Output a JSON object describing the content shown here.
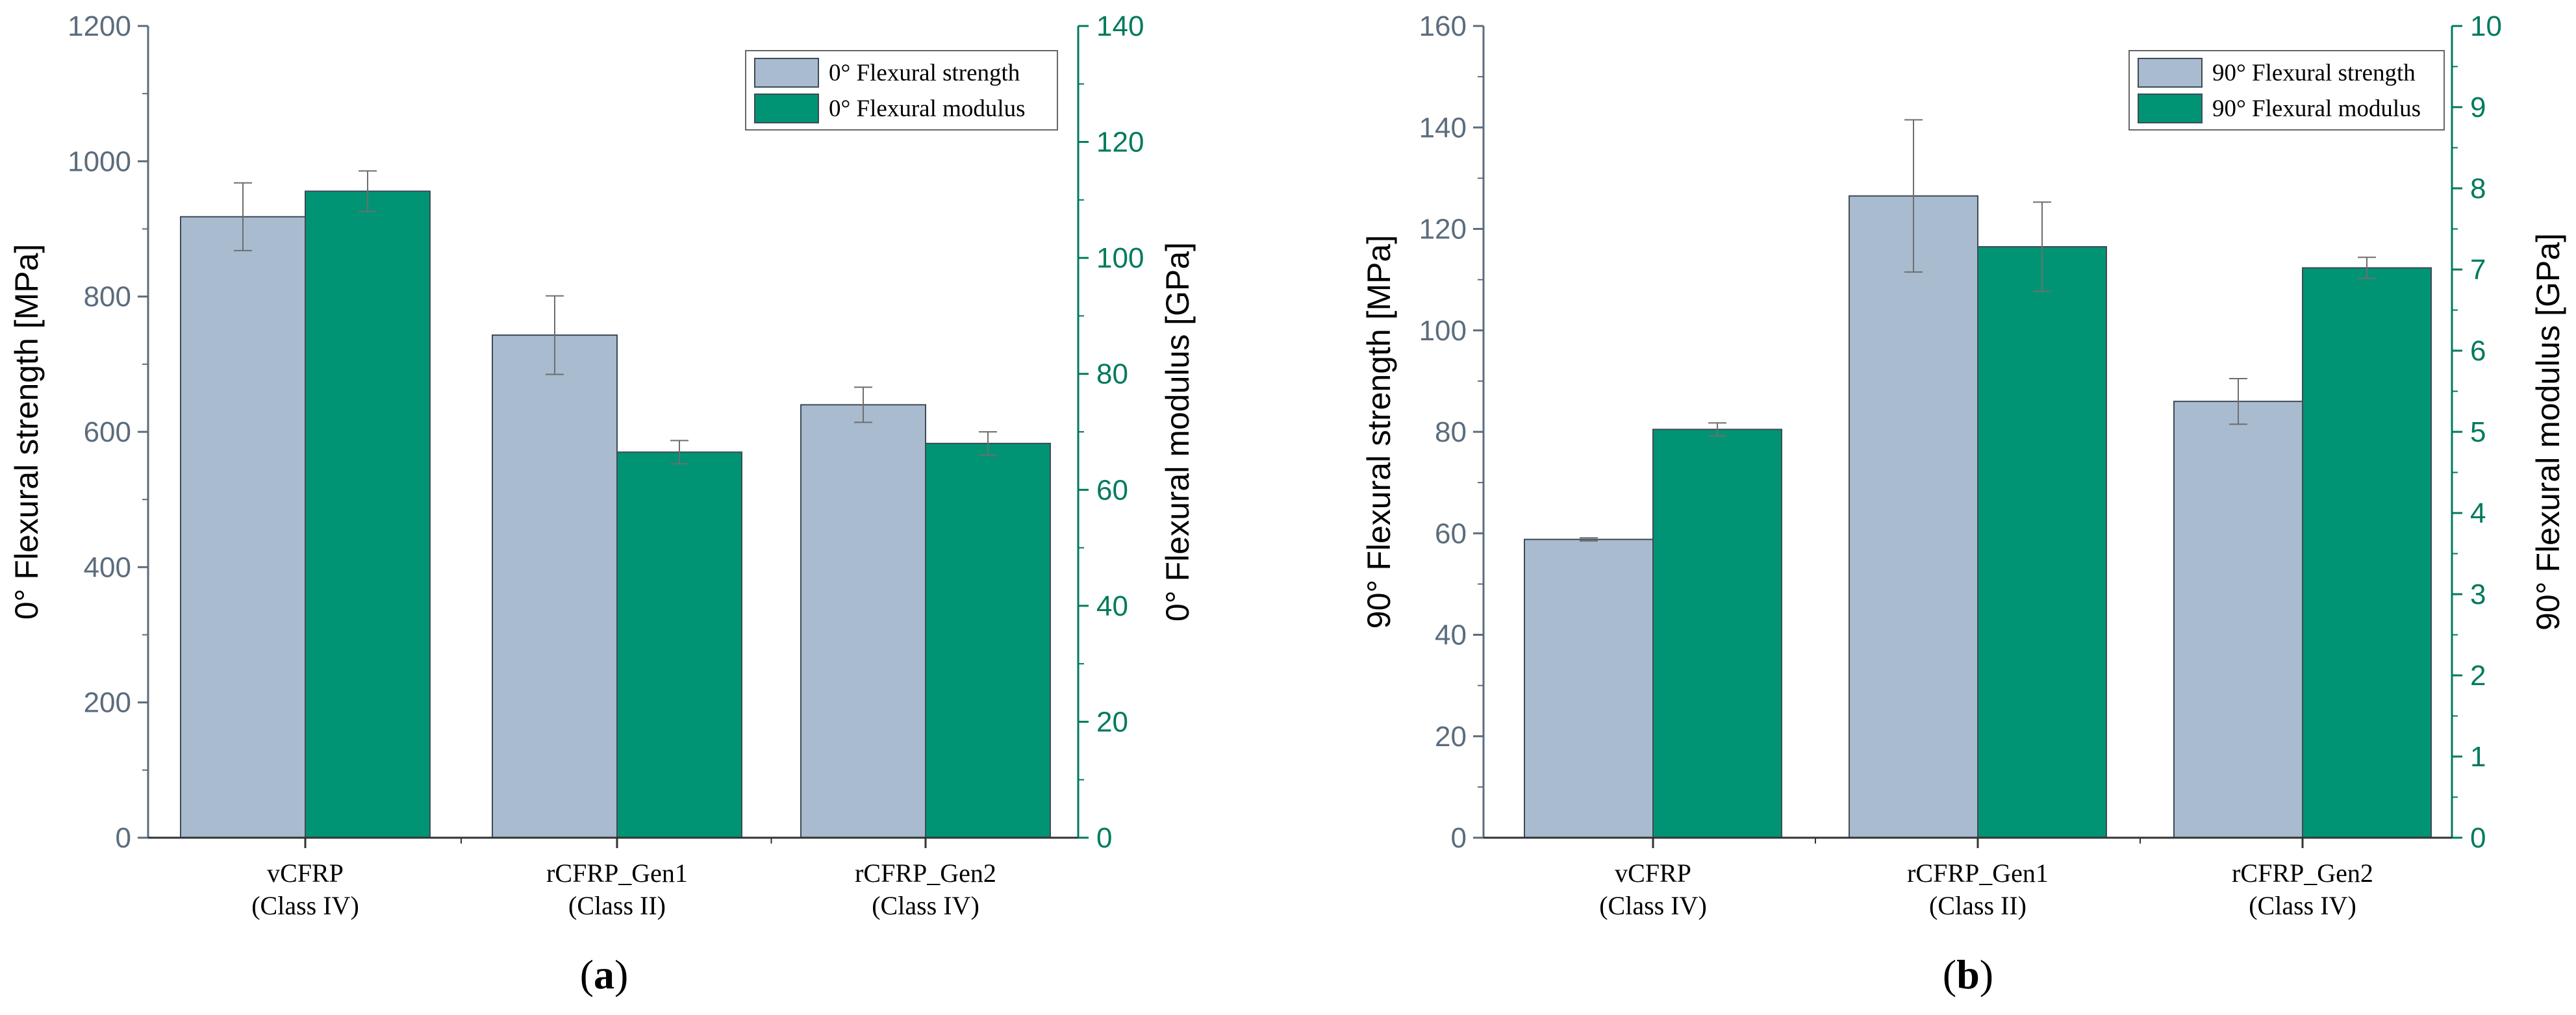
{
  "colors": {
    "strength": "#a8bbcf",
    "modulus": "#009474",
    "left_axis": "#5b6c7c",
    "right_axis": "#007a5e",
    "bar_edge": "#3f4a55",
    "error": "#6e6e6e"
  },
  "chart_data": [
    {
      "type": "bar",
      "panel_label": "a",
      "categories": [
        [
          "vCFRP",
          "(Class IV)"
        ],
        [
          "rCFRP_Gen1",
          "(Class II)"
        ],
        [
          "rCFRP_Gen2",
          "(Class IV)"
        ]
      ],
      "ylabel": "0° Flexural strength [MPa]",
      "y2label": "0° Flexural modulus [GPa]",
      "ylim": [
        0,
        1200
      ],
      "y2lim": [
        0,
        140
      ],
      "yticks": [
        0,
        200,
        400,
        600,
        800,
        1000,
        1200
      ],
      "y2ticks": [
        0,
        20,
        40,
        60,
        80,
        100,
        120,
        140
      ],
      "legend_position": "top-right",
      "series": [
        {
          "name": "0° Flexural strength",
          "axis": "left",
          "values": [
            918,
            743,
            640
          ],
          "errors": [
            50,
            58,
            26
          ]
        },
        {
          "name": "0° Flexural modulus",
          "axis": "right",
          "values": [
            111.5,
            66.5,
            68
          ],
          "errors": [
            3.5,
            2,
            2
          ]
        }
      ]
    },
    {
      "type": "bar",
      "panel_label": "b",
      "categories": [
        [
          "vCFRP",
          "(Class IV)"
        ],
        [
          "rCFRP_Gen1",
          "(Class II)"
        ],
        [
          "rCFRP_Gen2",
          "(Class IV)"
        ]
      ],
      "ylabel": "90° Flexural strength [MPa]",
      "y2label": "90° Flexural modulus [GPa]",
      "ylim": [
        0,
        160
      ],
      "y2lim": [
        0,
        10
      ],
      "yticks": [
        0,
        20,
        40,
        60,
        80,
        100,
        120,
        140,
        160
      ],
      "y2ticks": [
        0,
        1,
        2,
        3,
        4,
        5,
        6,
        7,
        8,
        9,
        10
      ],
      "legend_position": "top-right",
      "series": [
        {
          "name": "90° Flexural strength",
          "axis": "left",
          "values": [
            58.8,
            126.5,
            86
          ],
          "errors": [
            0.3,
            15,
            4.5
          ]
        },
        {
          "name": "90° Flexural modulus",
          "axis": "right",
          "values": [
            5.03,
            7.28,
            7.02
          ],
          "errors": [
            0.08,
            0.55,
            0.13
          ]
        }
      ]
    }
  ]
}
